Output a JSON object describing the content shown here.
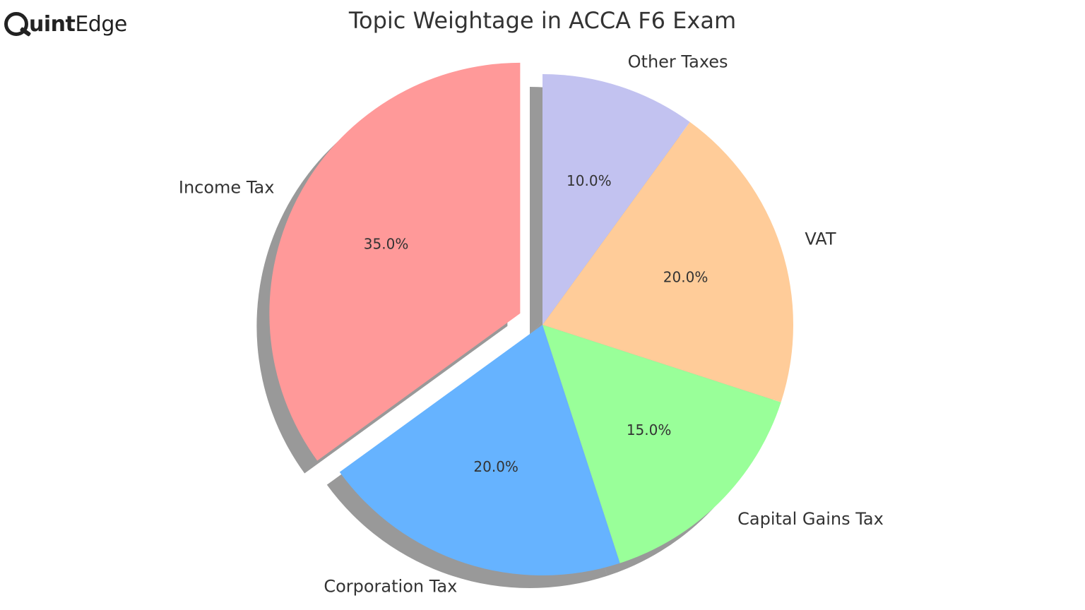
{
  "logo": {
    "first_letter": "Q",
    "bold_part": "uint",
    "light_part": "Edge"
  },
  "chart_data": {
    "type": "pie",
    "title": "Topic Weightage in ACCA F6 Exam",
    "categories": [
      "Income Tax",
      "Corporation Tax",
      "Capital Gains Tax",
      "VAT",
      "Other Taxes"
    ],
    "values": [
      35.0,
      20.0,
      15.0,
      20.0,
      10.0
    ],
    "value_labels": [
      "35.0%",
      "20.0%",
      "15.0%",
      "20.0%",
      "10.0%"
    ],
    "colors": [
      "#ff9999",
      "#66b3ff",
      "#99ff99",
      "#ffcc99",
      "#c2c2f0"
    ],
    "exploded": [
      "Income Tax"
    ],
    "start_angle_deg": 90,
    "direction": "counterclockwise",
    "shadow": true
  }
}
